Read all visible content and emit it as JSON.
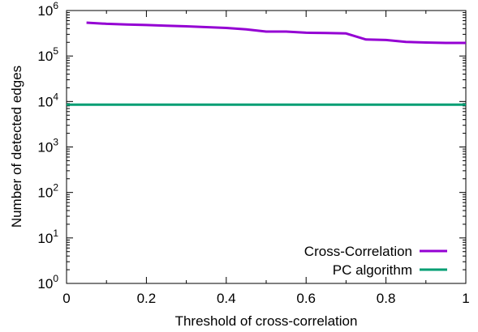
{
  "chart_data": {
    "type": "line",
    "xlabel": "Threshold of cross-correlation",
    "ylabel": "Number of detected edges",
    "xlim": [
      0,
      1
    ],
    "ylim": [
      1,
      1000000
    ],
    "yscale": "log",
    "grid": false,
    "legend_position": "bottom-right",
    "x_ticks": [
      "0",
      "0.2",
      "0.4",
      "0.6",
      "0.8",
      "1"
    ],
    "y_ticks": [
      {
        "base": "10",
        "exp": "0"
      },
      {
        "base": "10",
        "exp": "1"
      },
      {
        "base": "10",
        "exp": "2"
      },
      {
        "base": "10",
        "exp": "3"
      },
      {
        "base": "10",
        "exp": "4"
      },
      {
        "base": "10",
        "exp": "5"
      },
      {
        "base": "10",
        "exp": "6"
      }
    ],
    "series": [
      {
        "name": "Cross-Correlation",
        "color": "#9400d3",
        "x": [
          0.05,
          0.1,
          0.15,
          0.2,
          0.25,
          0.3,
          0.35,
          0.4,
          0.45,
          0.5,
          0.55,
          0.6,
          0.65,
          0.7,
          0.75,
          0.8,
          0.85,
          0.9,
          0.95,
          1.0
        ],
        "y": [
          540000,
          510000,
          495000,
          480000,
          465000,
          450000,
          432000,
          415000,
          385000,
          345000,
          345000,
          325000,
          320000,
          313000,
          230000,
          225000,
          205000,
          198000,
          194000,
          194000
        ]
      },
      {
        "name": "PC algorithm",
        "color": "#009e73",
        "x": [
          0,
          1
        ],
        "y": [
          8500,
          8500
        ]
      }
    ]
  }
}
